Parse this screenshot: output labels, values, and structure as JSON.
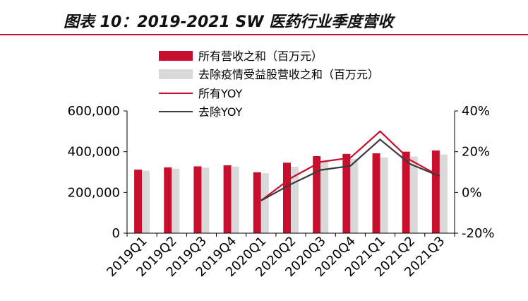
{
  "title": "图表 10：2019-2021 SW 医药行业季度营收",
  "colors": {
    "all_revenue": "#c8102e",
    "adj_revenue": "#d9d9d9",
    "all_yoy": "#c8102e",
    "adj_yoy": "#3a3a3a",
    "title_rule": "#c8102e",
    "axis": "#000000"
  },
  "chart_data": {
    "type": "bar",
    "categories": [
      "2019Q1",
      "2019Q2",
      "2019Q3",
      "2019Q4",
      "2020Q1",
      "2020Q2",
      "2020Q3",
      "2020Q4",
      "2021Q1",
      "2021Q2",
      "2021Q3"
    ],
    "series": [
      {
        "name": "所有营收之和（百万元）",
        "kind": "bar",
        "axis": "left",
        "values": [
          312000,
          323000,
          328000,
          333000,
          299000,
          346000,
          378000,
          389000,
          392000,
          400000,
          406000
        ]
      },
      {
        "name": "去除疫情受益股营收之和（百万元）",
        "kind": "bar",
        "axis": "left",
        "values": [
          307000,
          316000,
          322000,
          327000,
          294000,
          326000,
          352000,
          365000,
          372000,
          376000,
          386000
        ]
      },
      {
        "name": "所有YOY",
        "kind": "line",
        "axis": "right",
        "values": [
          null,
          null,
          null,
          null,
          -4,
          7,
          15,
          17,
          30,
          16,
          8
        ]
      },
      {
        "name": "去除YOY",
        "kind": "line",
        "axis": "right",
        "values": [
          null,
          null,
          null,
          null,
          -4,
          4,
          11,
          13,
          26,
          14,
          8
        ]
      }
    ],
    "y_left": {
      "min": 0,
      "max": 600000,
      "ticks": [
        "0",
        "200,000",
        "400,000",
        "600,000"
      ]
    },
    "y_right": {
      "min": -20,
      "max": 40,
      "ticks": [
        "-20%",
        "0%",
        "20%",
        "40%"
      ]
    },
    "legend_position": "top-center",
    "grid": false
  }
}
